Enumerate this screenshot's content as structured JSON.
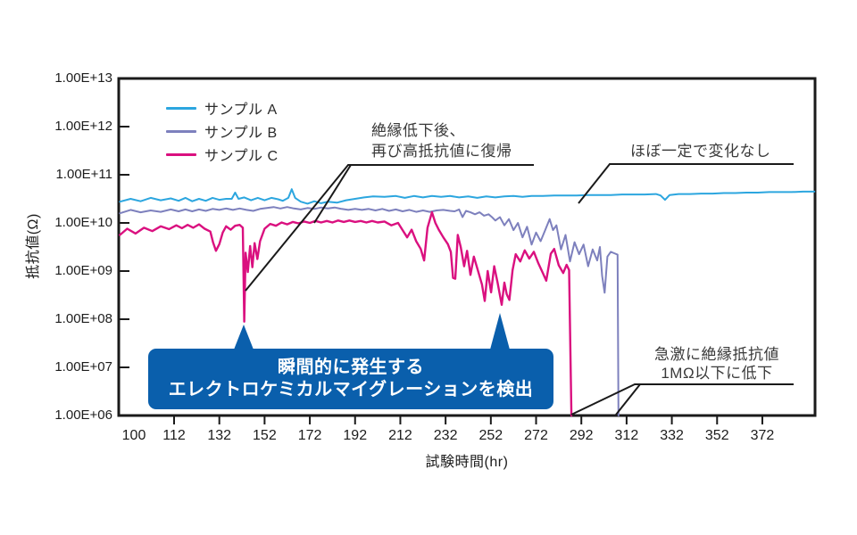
{
  "figure": {
    "background": "#ffffff",
    "frame_color": "#1a1a1a",
    "text_color": "#1c1c1c"
  },
  "chart_data": {
    "type": "line",
    "title": "",
    "x_axis": {
      "title": "試験時間(hr)",
      "tick_labels": [
        "100",
        "112",
        "132",
        "152",
        "172",
        "192",
        "212",
        "232",
        "252",
        "272",
        "292",
        "312",
        "332",
        "352",
        "372"
      ],
      "tick_hours": [
        100,
        112,
        132,
        152,
        172,
        192,
        212,
        232,
        252,
        272,
        292,
        312,
        332,
        352,
        372
      ]
    },
    "y_axis": {
      "title": "抵抗値(Ω)",
      "scale": "log10",
      "unit": "ohm",
      "range_exp": [
        6,
        13
      ],
      "tick_labels": [
        "1.00E+13",
        "1.00E+12",
        "1.00E+11",
        "1.00E+10",
        "1.00E+09",
        "1.00E+08",
        "1.00E+07",
        "1.00E+06"
      ],
      "tick_exps": [
        13,
        12,
        11,
        10,
        9,
        8,
        7,
        6
      ]
    },
    "legend_position": "top-left-inside",
    "grid": false,
    "annotations": {
      "recovery": {
        "lines": [
          "絶縁低下後、",
          "再び高抵抗値に復帰"
        ]
      },
      "constant": {
        "lines": [
          "ほぼ一定で変化なし"
        ]
      },
      "detection": {
        "lines": [
          "瞬間的に発生する",
          "エレクトロケミカルマイグレーションを検出"
        ],
        "color": "#0a5fac",
        "text_color": "#ffffff"
      },
      "sudden_drop": {
        "lines": [
          "急激に絶縁抵抗値",
          "1MΩ以下に低下"
        ]
      }
    },
    "series": [
      {
        "id": "sample-a",
        "name": "サンプル A",
        "color": "#2ca6df",
        "width": 2,
        "points": [
          [
            95.8,
            10.44
          ],
          [
            99,
            10.5
          ],
          [
            102,
            10.45
          ],
          [
            105,
            10.52
          ],
          [
            108,
            10.47
          ],
          [
            111,
            10.51
          ],
          [
            114,
            10.46
          ],
          [
            117,
            10.52
          ],
          [
            120,
            10.45
          ],
          [
            123,
            10.5
          ],
          [
            126,
            10.46
          ],
          [
            129,
            10.52
          ],
          [
            132,
            10.48
          ],
          [
            135,
            10.5
          ],
          [
            137.5,
            10.5
          ],
          [
            139,
            10.63
          ],
          [
            140.5,
            10.5
          ],
          [
            143,
            10.53
          ],
          [
            146,
            10.47
          ],
          [
            149,
            10.52
          ],
          [
            152,
            10.47
          ],
          [
            155,
            10.52
          ],
          [
            158,
            10.49
          ],
          [
            160,
            10.46
          ],
          [
            162.5,
            10.52
          ],
          [
            164,
            10.7
          ],
          [
            165.5,
            10.52
          ],
          [
            168,
            10.44
          ],
          [
            171,
            10.4
          ],
          [
            174,
            10.45
          ],
          [
            177,
            10.41
          ],
          [
            180,
            10.44
          ],
          [
            184,
            10.42
          ],
          [
            188,
            10.47
          ],
          [
            192,
            10.5
          ],
          [
            196,
            10.53
          ],
          [
            200,
            10.55
          ],
          [
            205,
            10.54
          ],
          [
            210,
            10.56
          ],
          [
            214,
            10.52
          ],
          [
            218,
            10.56
          ],
          [
            222,
            10.53
          ],
          [
            226,
            10.56
          ],
          [
            230,
            10.54
          ],
          [
            234,
            10.56
          ],
          [
            238,
            10.53
          ],
          [
            242,
            10.55
          ],
          [
            246,
            10.52
          ],
          [
            250,
            10.55
          ],
          [
            254,
            10.53
          ],
          [
            258,
            10.55
          ],
          [
            262,
            10.56
          ],
          [
            266,
            10.54
          ],
          [
            270,
            10.56
          ],
          [
            275,
            10.56
          ],
          [
            280,
            10.57
          ],
          [
            285,
            10.57
          ],
          [
            290,
            10.57
          ],
          [
            295,
            10.58
          ],
          [
            300,
            10.58
          ],
          [
            305,
            10.58
          ],
          [
            310,
            10.59
          ],
          [
            315,
            10.59
          ],
          [
            320,
            10.59
          ],
          [
            325,
            10.6
          ],
          [
            327,
            10.57
          ],
          [
            329,
            10.48
          ],
          [
            331,
            10.58
          ],
          [
            335,
            10.6
          ],
          [
            340,
            10.6
          ],
          [
            345,
            10.61
          ],
          [
            350,
            10.61
          ],
          [
            355,
            10.62
          ],
          [
            360,
            10.62
          ],
          [
            365,
            10.63
          ],
          [
            370,
            10.63
          ],
          [
            375,
            10.64
          ],
          [
            380,
            10.64
          ],
          [
            385,
            10.64
          ],
          [
            390,
            10.65
          ],
          [
            395,
            10.65
          ]
        ]
      },
      {
        "id": "sample-b",
        "name": "サンプル B",
        "color": "#7d80bd",
        "width": 2,
        "points": [
          [
            95.8,
            10.2
          ],
          [
            99,
            10.27
          ],
          [
            102,
            10.22
          ],
          [
            105,
            10.26
          ],
          [
            108,
            10.23
          ],
          [
            111,
            10.28
          ],
          [
            114,
            10.24
          ],
          [
            117,
            10.28
          ],
          [
            120,
            10.24
          ],
          [
            123,
            10.28
          ],
          [
            126,
            10.25
          ],
          [
            129,
            10.29
          ],
          [
            132,
            10.27
          ],
          [
            135,
            10.3
          ],
          [
            138,
            10.27
          ],
          [
            141,
            10.3
          ],
          [
            144,
            10.27
          ],
          [
            147,
            10.25
          ],
          [
            150,
            10.29
          ],
          [
            153,
            10.31
          ],
          [
            156,
            10.33
          ],
          [
            159,
            10.3
          ],
          [
            162,
            10.33
          ],
          [
            165,
            10.3
          ],
          [
            168,
            10.28
          ],
          [
            171,
            10.31
          ],
          [
            174,
            10.29
          ],
          [
            177,
            10.32
          ],
          [
            180,
            10.3
          ],
          [
            183,
            10.32
          ],
          [
            186,
            10.29
          ],
          [
            189,
            10.27
          ],
          [
            192,
            10.29
          ],
          [
            195,
            10.27
          ],
          [
            198,
            10.29
          ],
          [
            201,
            10.26
          ],
          [
            204,
            10.29
          ],
          [
            207,
            10.25
          ],
          [
            210,
            10.28
          ],
          [
            213,
            10.24
          ],
          [
            216,
            10.27
          ],
          [
            219,
            10.23
          ],
          [
            222,
            10.26
          ],
          [
            225,
            10.23
          ],
          [
            228,
            10.26
          ],
          [
            231,
            10.27
          ],
          [
            234,
            10.25
          ],
          [
            236,
            10.24
          ],
          [
            238,
            10.28
          ],
          [
            239.5,
            10.12
          ],
          [
            241,
            10.25
          ],
          [
            243,
            10.22
          ],
          [
            245,
            10.18
          ],
          [
            247,
            10.22
          ],
          [
            249,
            10.15
          ],
          [
            251,
            10.18
          ],
          [
            252.5,
            10.12
          ],
          [
            254,
            10.05
          ],
          [
            256,
            10.12
          ],
          [
            258,
            9.95
          ],
          [
            260,
            10.08
          ],
          [
            262,
            9.85
          ],
          [
            264,
            10.0
          ],
          [
            266,
            9.7
          ],
          [
            268,
            9.92
          ],
          [
            270,
            9.55
          ],
          [
            272,
            9.8
          ],
          [
            274,
            9.62
          ],
          [
            276,
            9.85
          ],
          [
            278,
            10.08
          ],
          [
            279.5,
            9.85
          ],
          [
            281,
            9.95
          ],
          [
            283,
            9.45
          ],
          [
            285,
            9.75
          ],
          [
            287,
            9.2
          ],
          [
            289,
            9.6
          ],
          [
            291,
            9.35
          ],
          [
            293,
            9.55
          ],
          [
            295,
            9.1
          ],
          [
            297,
            9.45
          ],
          [
            299,
            9.22
          ],
          [
            300.2,
            9.5
          ],
          [
            301.2,
            8.9
          ],
          [
            302.3,
            8.55
          ],
          [
            303.5,
            9.3
          ],
          [
            305,
            9.4
          ],
          [
            306.5,
            9.37
          ],
          [
            308,
            9.34
          ],
          [
            308.4,
            6.0
          ]
        ]
      },
      {
        "id": "sample-c",
        "name": "サンプル C",
        "color": "#da107f",
        "width": 2.4,
        "points": [
          [
            95.8,
            9.75
          ],
          [
            98,
            9.88
          ],
          [
            100.5,
            9.78
          ],
          [
            103,
            9.9
          ],
          [
            105.5,
            9.83
          ],
          [
            108,
            9.93
          ],
          [
            110.5,
            9.87
          ],
          [
            113,
            9.95
          ],
          [
            115.5,
            9.89
          ],
          [
            118,
            9.96
          ],
          [
            120.5,
            9.9
          ],
          [
            123,
            9.97
          ],
          [
            125.5,
            9.88
          ],
          [
            128,
            9.82
          ],
          [
            129.2,
            9.6
          ],
          [
            130.5,
            9.42
          ],
          [
            132,
            9.56
          ],
          [
            133.5,
            9.8
          ],
          [
            135,
            9.93
          ],
          [
            137,
            9.86
          ],
          [
            139,
            9.94
          ],
          [
            141,
            9.96
          ],
          [
            142.4,
            9.9
          ],
          [
            143,
            7.95
          ],
          [
            143.6,
            9.38
          ],
          [
            144.6,
            8.98
          ],
          [
            145.6,
            9.52
          ],
          [
            146.6,
            9.08
          ],
          [
            147.6,
            9.58
          ],
          [
            148.8,
            9.25
          ],
          [
            150,
            9.62
          ],
          [
            152,
            9.88
          ],
          [
            154.5,
            9.98
          ],
          [
            157,
            9.94
          ],
          [
            159.5,
            10.01
          ],
          [
            162,
            9.97
          ],
          [
            164.5,
            10.02
          ],
          [
            167,
            9.99
          ],
          [
            169.5,
            10.03
          ],
          [
            172,
            10.0
          ],
          [
            174.5,
            10.04
          ],
          [
            177,
            10.01
          ],
          [
            179.5,
            10.04
          ],
          [
            182,
            10.01
          ],
          [
            184.5,
            10.05
          ],
          [
            187,
            10.02
          ],
          [
            189.5,
            10.05
          ],
          [
            192,
            10.02
          ],
          [
            194.5,
            10.04
          ],
          [
            197,
            10.01
          ],
          [
            199.5,
            10.04
          ],
          [
            202,
            10.01
          ],
          [
            205,
            10.03
          ],
          [
            208,
            9.95
          ],
          [
            211,
            10.0
          ],
          [
            213,
            9.85
          ],
          [
            215,
            9.7
          ],
          [
            217,
            9.86
          ],
          [
            219,
            9.62
          ],
          [
            221,
            9.46
          ],
          [
            222.5,
            9.22
          ],
          [
            224,
            9.9
          ],
          [
            226,
            10.22
          ],
          [
            227.5,
            10.0
          ],
          [
            229,
            9.86
          ],
          [
            231,
            9.7
          ],
          [
            233,
            9.56
          ],
          [
            234.3,
            9.4
          ],
          [
            235.3,
            8.86
          ],
          [
            236.3,
            8.84
          ],
          [
            237.4,
            9.75
          ],
          [
            238.7,
            9.5
          ],
          [
            240.2,
            9.1
          ],
          [
            241.5,
            9.42
          ],
          [
            243,
            8.92
          ],
          [
            244.5,
            9.3
          ],
          [
            246,
            9.06
          ],
          [
            248.1,
            8.72
          ],
          [
            249.3,
            8.38
          ],
          [
            250.6,
            9.0
          ],
          [
            252.1,
            8.56
          ],
          [
            253.5,
            9.1
          ],
          [
            255,
            8.76
          ],
          [
            256.8,
            8.3
          ],
          [
            258,
            8.76
          ],
          [
            259,
            8.52
          ],
          [
            260.2,
            8.4
          ],
          [
            261.6,
            9.02
          ],
          [
            263,
            9.35
          ],
          [
            265,
            9.2
          ],
          [
            267,
            9.43
          ],
          [
            269,
            9.26
          ],
          [
            271,
            9.4
          ],
          [
            273,
            9.16
          ],
          [
            275,
            8.96
          ],
          [
            276.5,
            8.8
          ],
          [
            278.5,
            9.36
          ],
          [
            280,
            9.46
          ],
          [
            282,
            9.12
          ],
          [
            284,
            8.96
          ],
          [
            285.5,
            9.13
          ],
          [
            286.6,
            9.02
          ],
          [
            287.6,
            6.0
          ]
        ]
      }
    ],
    "events": {
      "sample_c_spike_hr": 143,
      "sample_c_deep_dip_hr": 257,
      "sample_c_failure_hr": 287.6,
      "sample_b_failure_hr": 308.4
    }
  }
}
